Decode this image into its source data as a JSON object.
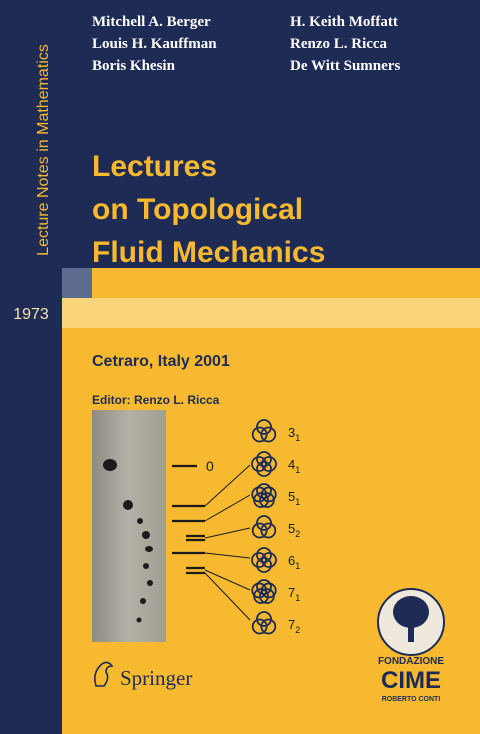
{
  "series": "Lecture Notes in Mathematics",
  "volume": "1973",
  "authors": {
    "left": [
      "Mitchell A. Berger",
      "Louis H. Kauffman",
      "Boris Khesin"
    ],
    "right": [
      "H. Keith Moffatt",
      "Renzo L. Ricca",
      "De Witt Sumners"
    ]
  },
  "title": [
    "Lectures",
    "on Topological",
    "Fluid Mechanics"
  ],
  "location": "Cetraro, Italy 2001",
  "editor": "Editor: Renzo L. Ricca",
  "figure": {
    "zero_label": "0",
    "knots": [
      {
        "n": "3",
        "sub": "1"
      },
      {
        "n": "4",
        "sub": "1"
      },
      {
        "n": "5",
        "sub": "1"
      },
      {
        "n": "5",
        "sub": "2"
      },
      {
        "n": "6",
        "sub": "1"
      },
      {
        "n": "7",
        "sub": "1"
      },
      {
        "n": "7",
        "sub": "2"
      }
    ]
  },
  "publisher": "Springer",
  "foundation": {
    "line1": "FONDAZIONE",
    "name": "CIME",
    "subtitle": "ROBERTO CONTI"
  }
}
